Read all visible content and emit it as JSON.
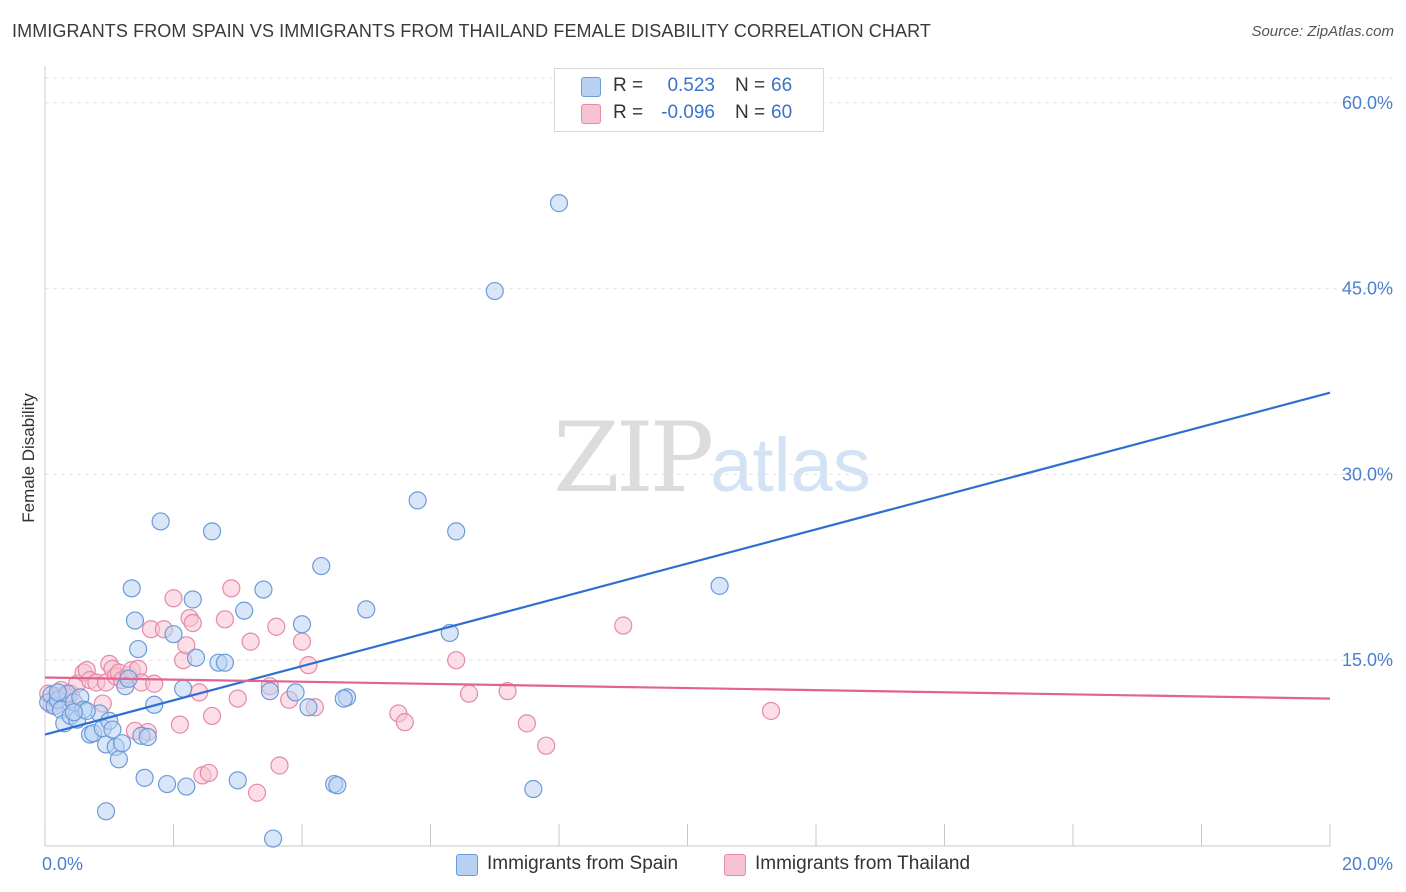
{
  "title": "IMMIGRANTS FROM SPAIN VS IMMIGRANTS FROM THAILAND FEMALE DISABILITY CORRELATION CHART",
  "source": "Source: ZipAtlas.com",
  "watermark": {
    "zip": "ZIP",
    "atlas": "atlas"
  },
  "legend": {
    "r_label": "R =",
    "n_label": "N =",
    "spain": {
      "r": "0.523",
      "n": "66"
    },
    "thailand": {
      "r": "-0.096",
      "n": "60"
    }
  },
  "colors": {
    "spain_fill": "#b8d1f3",
    "spain_stroke": "#6d9ad8",
    "spain_line": "#2f6fd0",
    "thailand_fill": "#f7c3d4",
    "thailand_stroke": "#e58aa8",
    "thailand_line": "#e0648f",
    "tick_text": "#4a7fd0",
    "grid": "#e2e2e2"
  },
  "chart_data": {
    "type": "scatter",
    "title": "IMMIGRANTS FROM SPAIN VS IMMIGRANTS FROM THAILAND FEMALE DISABILITY CORRELATION CHART",
    "xlabel": "",
    "ylabel": "Female Disability",
    "xlim": [
      0,
      20
    ],
    "ylim": [
      0,
      62
    ],
    "x_tick_labels": [
      {
        "value": 0,
        "label": "0.0%"
      },
      {
        "value": 20,
        "label": "20.0%"
      }
    ],
    "y_tick_labels": [
      {
        "value": 15,
        "label": "15.0%"
      },
      {
        "value": 30,
        "label": "30.0%"
      },
      {
        "value": 45,
        "label": "45.0%"
      },
      {
        "value": 60,
        "label": "60.0%"
      }
    ],
    "series": [
      {
        "name": "Immigrants from Spain",
        "trend": [
          [
            0,
            9.0
          ],
          [
            20,
            36.6
          ]
        ],
        "points": [
          [
            0.05,
            11.6
          ],
          [
            0.1,
            12.2
          ],
          [
            0.15,
            11.3
          ],
          [
            0.2,
            11.8
          ],
          [
            0.25,
            11.0
          ],
          [
            0.3,
            9.9
          ],
          [
            0.35,
            12.3
          ],
          [
            0.4,
            10.5
          ],
          [
            0.45,
            11.6
          ],
          [
            0.5,
            10.2
          ],
          [
            0.55,
            12.0
          ],
          [
            0.6,
            11.0
          ],
          [
            0.7,
            9.0
          ],
          [
            0.75,
            9.1
          ],
          [
            0.85,
            10.7
          ],
          [
            0.9,
            9.5
          ],
          [
            0.95,
            8.2
          ],
          [
            1.0,
            10.1
          ],
          [
            1.05,
            9.4
          ],
          [
            1.1,
            8.0
          ],
          [
            1.15,
            7.0
          ],
          [
            1.2,
            8.3
          ],
          [
            1.25,
            12.9
          ],
          [
            1.3,
            13.5
          ],
          [
            1.4,
            18.2
          ],
          [
            1.5,
            8.9
          ],
          [
            1.55,
            5.5
          ],
          [
            1.6,
            8.8
          ],
          [
            1.7,
            11.4
          ],
          [
            1.8,
            26.2
          ],
          [
            1.9,
            5.0
          ],
          [
            2.0,
            17.1
          ],
          [
            2.15,
            12.7
          ],
          [
            2.2,
            4.8
          ],
          [
            2.3,
            19.9
          ],
          [
            2.35,
            15.2
          ],
          [
            2.6,
            25.4
          ],
          [
            2.7,
            14.8
          ],
          [
            3.0,
            5.3
          ],
          [
            3.1,
            19.0
          ],
          [
            3.4,
            20.7
          ],
          [
            3.5,
            12.5
          ],
          [
            3.9,
            12.4
          ],
          [
            4.0,
            17.9
          ],
          [
            4.1,
            11.2
          ],
          [
            4.3,
            22.6
          ],
          [
            4.5,
            5.0
          ],
          [
            4.55,
            4.9
          ],
          [
            4.7,
            12.0
          ],
          [
            5.0,
            19.1
          ],
          [
            5.8,
            27.9
          ],
          [
            6.3,
            17.2
          ],
          [
            6.4,
            25.4
          ],
          [
            7.0,
            44.8
          ],
          [
            7.6,
            4.6
          ],
          [
            8.0,
            51.9
          ],
          [
            10.5,
            21.0
          ],
          [
            1.35,
            20.8
          ],
          [
            0.65,
            10.9
          ],
          [
            1.45,
            15.9
          ],
          [
            3.55,
            0.6
          ],
          [
            4.65,
            11.9
          ],
          [
            0.2,
            12.4
          ],
          [
            2.8,
            14.8
          ],
          [
            0.95,
            2.8
          ],
          [
            0.45,
            10.8
          ]
        ]
      },
      {
        "name": "Immigrants from Thailand",
        "trend": [
          [
            0,
            13.6
          ],
          [
            20,
            11.9
          ]
        ],
        "points": [
          [
            0.05,
            12.3
          ],
          [
            0.1,
            11.4
          ],
          [
            0.15,
            11.9
          ],
          [
            0.2,
            12.1
          ],
          [
            0.25,
            12.6
          ],
          [
            0.3,
            12.0
          ],
          [
            0.35,
            11.7
          ],
          [
            0.4,
            12.3
          ],
          [
            0.5,
            13.1
          ],
          [
            0.6,
            14.0
          ],
          [
            0.65,
            14.2
          ],
          [
            0.7,
            13.4
          ],
          [
            0.8,
            13.2
          ],
          [
            0.9,
            11.5
          ],
          [
            0.95,
            13.2
          ],
          [
            1.0,
            14.7
          ],
          [
            1.05,
            14.3
          ],
          [
            1.1,
            13.7
          ],
          [
            1.15,
            14.0
          ],
          [
            1.2,
            13.4
          ],
          [
            1.3,
            13.8
          ],
          [
            1.35,
            14.2
          ],
          [
            1.4,
            9.3
          ],
          [
            1.45,
            14.3
          ],
          [
            1.5,
            13.2
          ],
          [
            1.6,
            9.2
          ],
          [
            1.65,
            17.5
          ],
          [
            1.7,
            13.1
          ],
          [
            1.85,
            17.5
          ],
          [
            2.0,
            20.0
          ],
          [
            2.1,
            9.8
          ],
          [
            2.15,
            15.0
          ],
          [
            2.2,
            16.2
          ],
          [
            2.25,
            18.4
          ],
          [
            2.3,
            18.0
          ],
          [
            2.4,
            12.4
          ],
          [
            2.45,
            5.7
          ],
          [
            2.55,
            5.9
          ],
          [
            2.6,
            10.5
          ],
          [
            2.8,
            18.3
          ],
          [
            2.9,
            20.8
          ],
          [
            3.0,
            11.9
          ],
          [
            3.2,
            16.5
          ],
          [
            3.3,
            4.3
          ],
          [
            3.5,
            12.9
          ],
          [
            3.6,
            17.7
          ],
          [
            3.65,
            6.5
          ],
          [
            3.8,
            11.8
          ],
          [
            4.0,
            16.5
          ],
          [
            4.1,
            14.6
          ],
          [
            4.2,
            11.2
          ],
          [
            5.5,
            10.7
          ],
          [
            5.6,
            10.0
          ],
          [
            6.4,
            15.0
          ],
          [
            6.6,
            12.3
          ],
          [
            7.2,
            12.5
          ],
          [
            7.5,
            9.9
          ],
          [
            7.8,
            8.1
          ],
          [
            9.0,
            17.8
          ],
          [
            11.3,
            10.9
          ]
        ]
      }
    ]
  }
}
